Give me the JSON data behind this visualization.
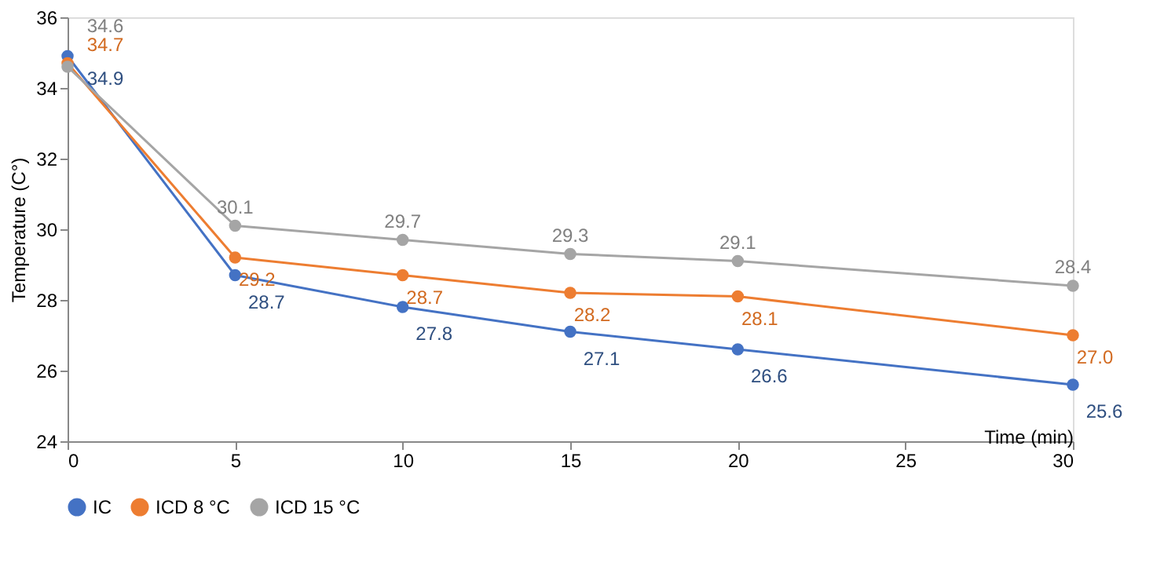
{
  "chart_data": {
    "type": "line",
    "xlabel": "Time (min)",
    "ylabel": "Temperature (C°)",
    "x": [
      0,
      5,
      10,
      15,
      20,
      30
    ],
    "series": [
      {
        "name": "IC",
        "color": "#4472c4",
        "values": [
          34.9,
          28.7,
          27.8,
          27.1,
          26.6,
          25.6
        ],
        "value_labels": [
          "34.9",
          "28.7",
          "27.8",
          "27.1",
          "26.6",
          "25.6"
        ]
      },
      {
        "name": "ICD 8 °C",
        "color": "#ed7d31",
        "values": [
          34.7,
          29.2,
          28.7,
          28.2,
          28.1,
          27.0
        ],
        "value_labels": [
          "34.7",
          "29.2",
          "28.7",
          "28.2",
          "28.1",
          "27.0"
        ]
      },
      {
        "name": "ICD 15 °C",
        "color": "#a5a5a5",
        "values": [
          34.6,
          30.1,
          29.7,
          29.3,
          29.1,
          28.4
        ],
        "value_labels": [
          "34.6",
          "30.1",
          "29.7",
          "29.3",
          "29.1",
          "28.4"
        ]
      }
    ],
    "xlim": [
      0,
      30
    ],
    "xticks": [
      0,
      5,
      10,
      15,
      20,
      25,
      30
    ],
    "ylim": [
      24,
      36
    ],
    "yticks": [
      24,
      26,
      28,
      30,
      32,
      34,
      36
    ],
    "grid": false,
    "legend": "bottom",
    "marker": "circle",
    "line_style": "solid"
  }
}
